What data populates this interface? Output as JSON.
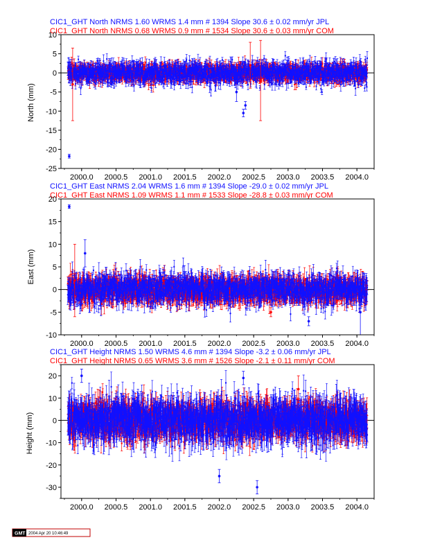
{
  "chart_data": [
    {
      "type": "scatter",
      "component": "north",
      "title_lines": [
        {
          "text": "CIC1_GHT North NRMS 1.60 WRMS  1.4 mm # 1394 Slope  30.6 ±  0.02 mm/yr JPL",
          "color": "#1010ff"
        },
        {
          "text": "CIC1_GHT North NRMS 0.68 WRMS  0.9 mm # 1534 Slope  30.6 ±  0.03 mm/yr COM",
          "color": "#ff0000"
        }
      ],
      "ylabel": "North (mm)",
      "xlim": [
        1999.7,
        2004.25
      ],
      "ylim": [
        -25,
        10
      ],
      "yticks": [
        -25,
        -20,
        -15,
        -10,
        -5,
        0,
        5,
        10
      ],
      "xticks": [
        "2000.0",
        "2000.5",
        "2001.0",
        "2001.5",
        "2002.0",
        "2002.5",
        "2003.0",
        "2003.5",
        "2004.0"
      ],
      "xrange_data": [
        1999.8,
        2004.15
      ],
      "series": [
        {
          "color": "#ff0000",
          "n": 1534,
          "scatter_sd": 0.9,
          "err": 1.3
        },
        {
          "color": "#1010ff",
          "n": 1394,
          "scatter_sd": 1.4,
          "err": 1.2
        }
      ],
      "outliers": [
        {
          "x": 1999.82,
          "y": -21.8,
          "err": 0.5,
          "color": "#1010ff"
        },
        {
          "x": 1999.87,
          "y": -3,
          "err": 9.5,
          "color": "#ff0000"
        },
        {
          "x": 2002.35,
          "y": -10.5,
          "err": 1.0,
          "color": "#1010ff"
        },
        {
          "x": 2002.38,
          "y": -8.5,
          "err": 1.0,
          "color": "#1010ff"
        },
        {
          "x": 2002.45,
          "y": 2,
          "err": 6,
          "color": "#ff0000"
        },
        {
          "x": 2002.6,
          "y": -2,
          "err": 10.5,
          "color": "#ff0000"
        },
        {
          "x": 2002.25,
          "y": -5,
          "err": 2.5,
          "color": "#1010ff"
        }
      ]
    },
    {
      "type": "scatter",
      "component": "east",
      "title_lines": [
        {
          "text": "CIC1_GHT East NRMS 2.04 WRMS  1.6 mm # 1394 Slope  -29.0 ±  0.02 mm/yr JPL",
          "color": "#1010ff"
        },
        {
          "text": "CIC1_GHT East NRMS 1.09 WRMS  1.1 mm # 1533 Slope  -28.8 ±  0.03 mm/yr COM",
          "color": "#ff0000"
        }
      ],
      "ylabel": "East (mm)",
      "xlim": [
        1999.7,
        2004.25
      ],
      "ylim": [
        -10,
        20
      ],
      "yticks": [
        -10,
        -5,
        0,
        5,
        10,
        15,
        20
      ],
      "xticks": [
        "2000.0",
        "2000.5",
        "2001.0",
        "2001.5",
        "2002.0",
        "2002.5",
        "2003.0",
        "2003.5",
        "2004.0"
      ],
      "xrange_data": [
        1999.8,
        2004.15
      ],
      "series": [
        {
          "color": "#ff0000",
          "n": 1533,
          "scatter_sd": 1.1,
          "err": 1.8
        },
        {
          "color": "#1010ff",
          "n": 1394,
          "scatter_sd": 1.6,
          "err": 1.5
        }
      ],
      "outliers": [
        {
          "x": 1999.82,
          "y": 18.3,
          "err": 0.4,
          "color": "#1010ff"
        },
        {
          "x": 1999.9,
          "y": 2,
          "err": 8,
          "color": "#ff0000"
        },
        {
          "x": 2000.05,
          "y": 8,
          "err": 3,
          "color": "#1010ff"
        },
        {
          "x": 2002.75,
          "y": -5,
          "err": 1,
          "color": "#ff0000"
        },
        {
          "x": 2003.3,
          "y": -7,
          "err": 1,
          "color": "#1010ff"
        },
        {
          "x": 2004.05,
          "y": -5,
          "err": 5,
          "color": "#1010ff"
        }
      ]
    },
    {
      "type": "scatter",
      "component": "height",
      "title_lines": [
        {
          "text": "CIC1_GHT Height NRMS 1.50 WRMS  4.6 mm # 1394 Slope  -3.2 ±  0.06 mm/yr JPL",
          "color": "#1010ff"
        },
        {
          "text": "CIC1_GHT Height NRMS 0.65 WRMS  3.6 mm # 1526 Slope  -2.1 ±  0.11 mm/yr COM",
          "color": "#ff0000"
        }
      ],
      "ylabel": "Height (mm)",
      "xlim": [
        1999.7,
        2004.25
      ],
      "ylim": [
        -35,
        25
      ],
      "yticks": [
        -30,
        -20,
        -10,
        0,
        10,
        20
      ],
      "xticks": [
        "2000.0",
        "2000.5",
        "2001.0",
        "2001.5",
        "2002.0",
        "2002.5",
        "2003.0",
        "2003.5",
        "2004.0"
      ],
      "xrange_data": [
        1999.8,
        2004.15
      ],
      "series": [
        {
          "color": "#ff0000",
          "n": 1526,
          "scatter_sd": 3.6,
          "err": 4.5
        },
        {
          "color": "#1010ff",
          "n": 1394,
          "scatter_sd": 4.6,
          "err": 5.0
        }
      ],
      "outliers": [
        {
          "x": 2000.0,
          "y": 20,
          "err": 3,
          "color": "#1010ff"
        },
        {
          "x": 2002.35,
          "y": 19,
          "err": 3,
          "color": "#1010ff"
        },
        {
          "x": 2002.55,
          "y": -30,
          "err": 3,
          "color": "#1010ff"
        },
        {
          "x": 2002.0,
          "y": -25,
          "err": 3,
          "color": "#1010ff"
        },
        {
          "x": 2003.15,
          "y": 14,
          "err": 6,
          "color": "#ff0000"
        }
      ]
    }
  ],
  "footer": {
    "logo_text": "GMT",
    "timestamp": "2004 Apr 20 10:46:49"
  }
}
